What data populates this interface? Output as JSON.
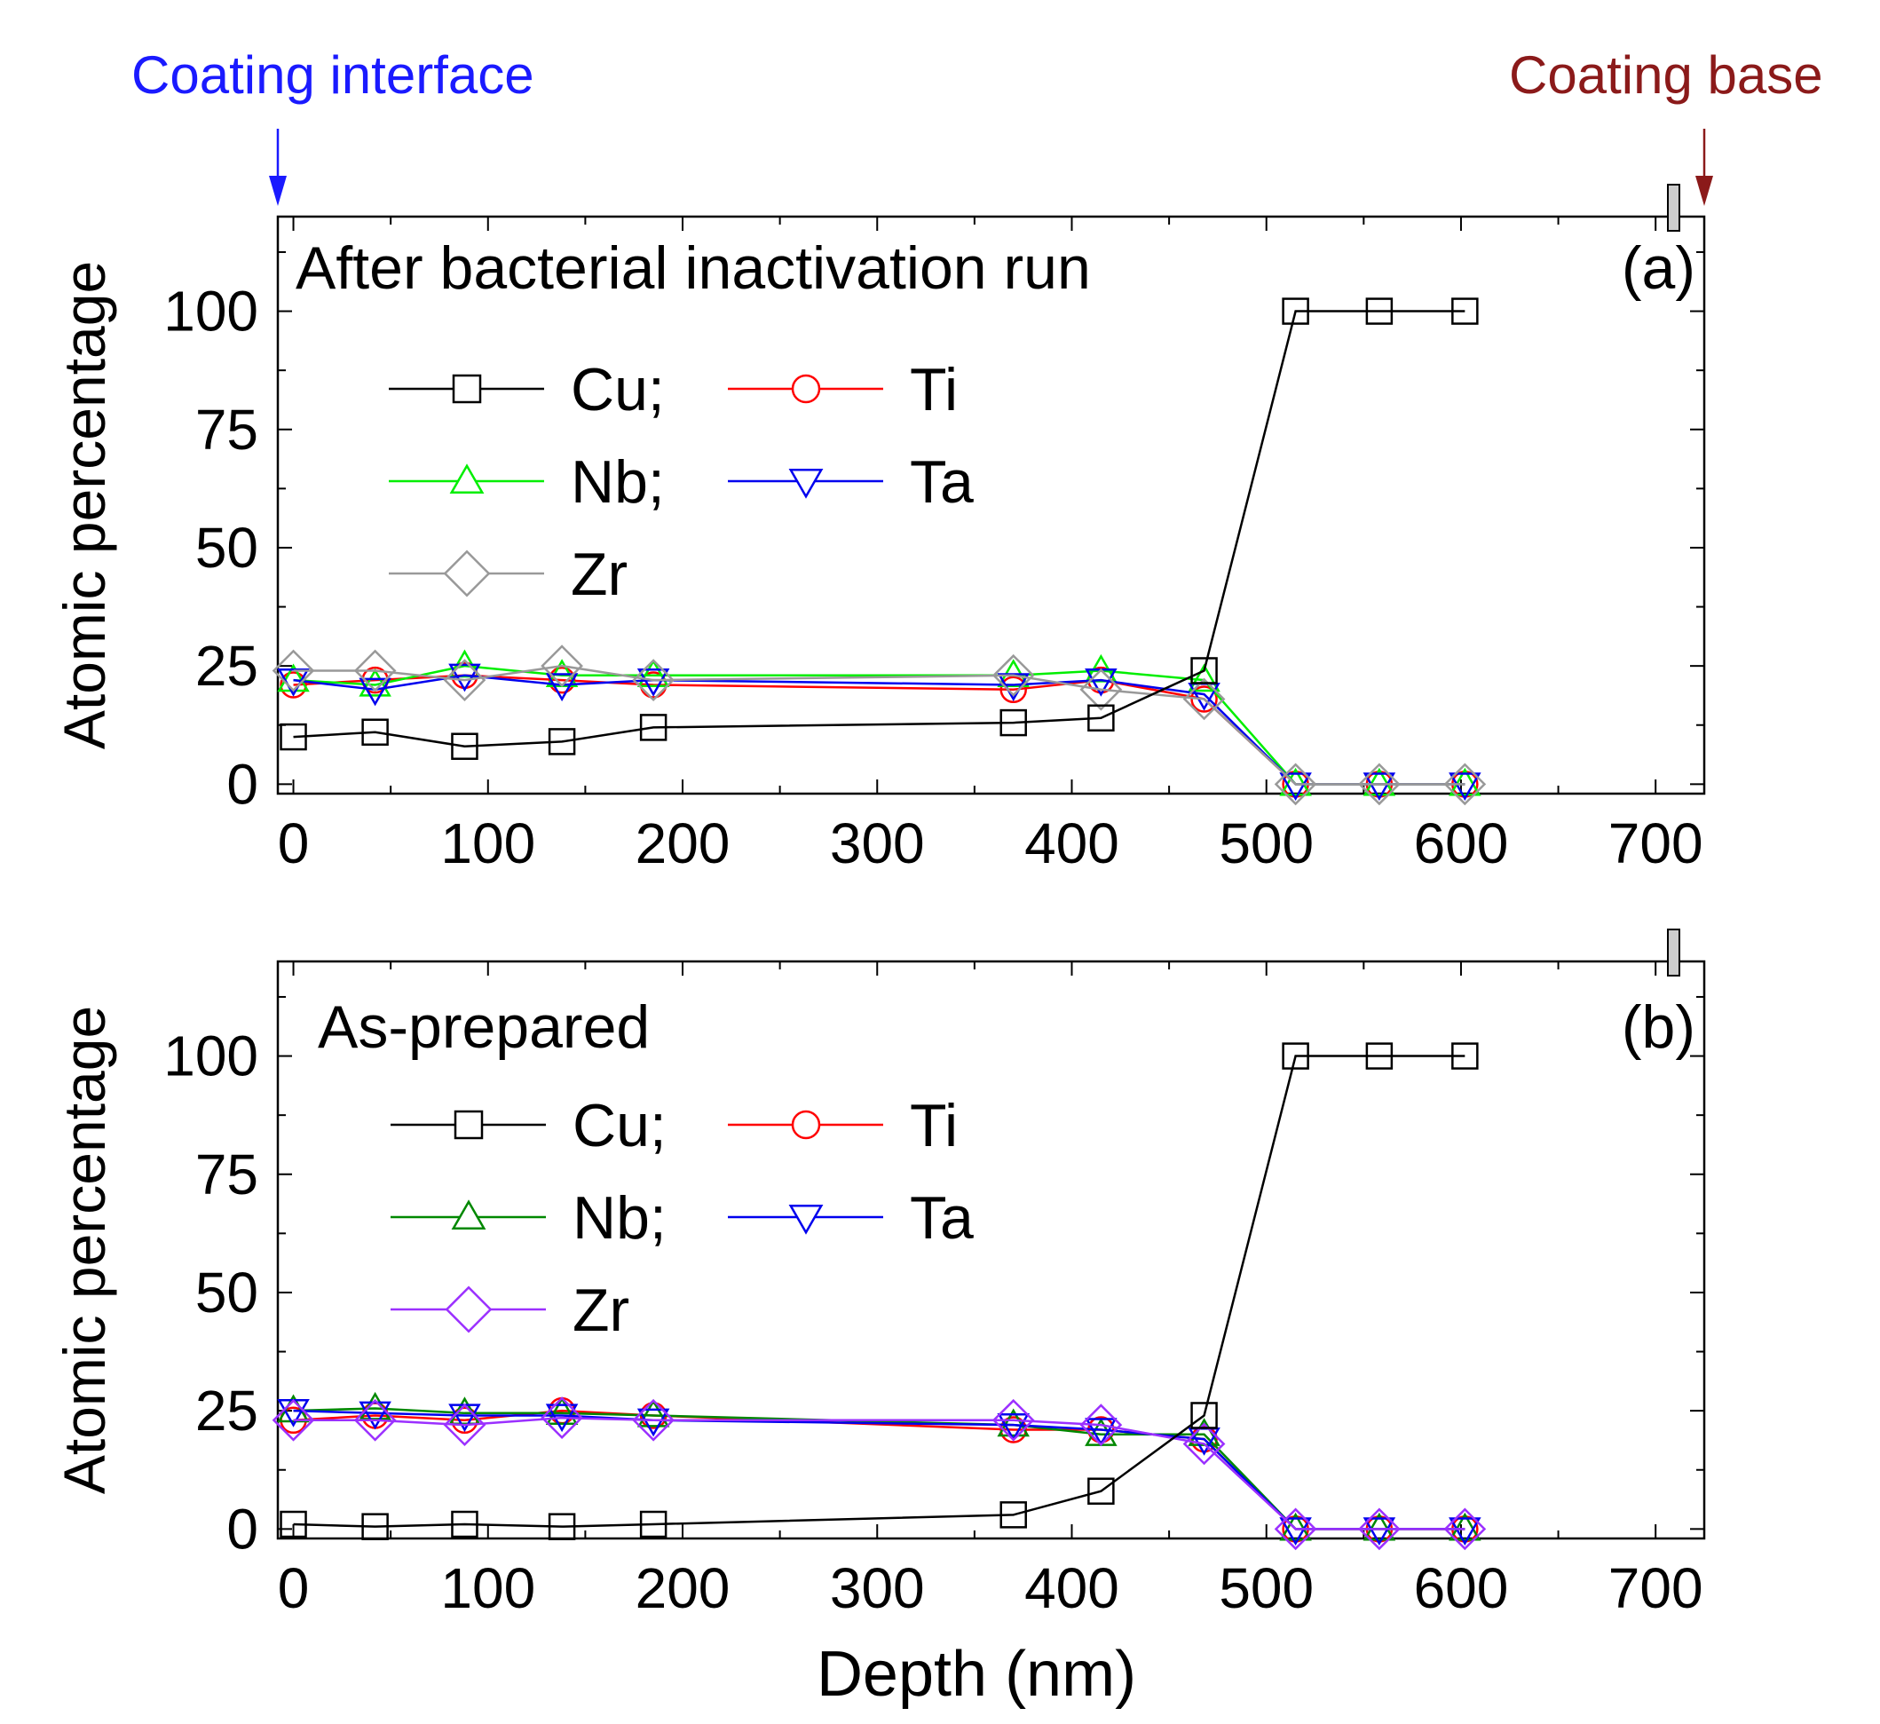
{
  "annotations": {
    "interface_label": "Coating interface",
    "interface_color": "#1a1aff",
    "base_label": "Coating base",
    "base_color": "#8b1a1a"
  },
  "chart_data": [
    {
      "type": "line",
      "title": "After bacterial inactivation run",
      "panel_label": "(a)",
      "xlabel": "",
      "ylabel": "Atomic percentage",
      "xlim": [
        -8,
        725
      ],
      "ylim": [
        -2,
        120
      ],
      "xticks": [
        0,
        100,
        200,
        300,
        400,
        500,
        600,
        700
      ],
      "yticks": [
        0,
        25,
        50,
        75,
        100
      ],
      "legend": "upper-left",
      "x": [
        0,
        42,
        88,
        138,
        185,
        370,
        415,
        468,
        515,
        558,
        602
      ],
      "series": [
        {
          "name": "Cu",
          "legend_label": "Cu;",
          "marker": "square",
          "color": "#000000",
          "values": [
            10,
            11,
            8,
            9,
            12,
            13,
            14,
            24,
            100,
            100,
            100
          ]
        },
        {
          "name": "Ti",
          "legend_label": "Ti",
          "marker": "circle",
          "color": "#ff0000",
          "values": [
            21,
            22,
            23,
            22,
            21,
            20,
            22,
            18,
            0,
            0,
            0
          ]
        },
        {
          "name": "Nb",
          "legend_label": "Nb;",
          "marker": "triangle-up",
          "color": "#00ee00",
          "values": [
            22,
            21,
            25,
            23,
            23,
            23,
            24,
            22,
            0,
            0,
            0
          ]
        },
        {
          "name": "Ta",
          "legend_label": "Ta",
          "marker": "triangle-down",
          "color": "#0000ee",
          "values": [
            22,
            20,
            23,
            21,
            22,
            21,
            22,
            19,
            0,
            0,
            0
          ]
        },
        {
          "name": "Zr",
          "legend_label": "Zr",
          "marker": "diamond",
          "color": "#999999",
          "values": [
            24,
            24,
            22,
            25,
            22,
            23,
            20,
            18,
            0,
            0,
            0
          ]
        }
      ]
    },
    {
      "type": "line",
      "title": "As-prepared",
      "panel_label": "(b)",
      "xlabel": "Depth (nm)",
      "ylabel": "Atomic percentage",
      "xlim": [
        -8,
        725
      ],
      "ylim": [
        -2,
        120
      ],
      "xticks": [
        0,
        100,
        200,
        300,
        400,
        500,
        600,
        700
      ],
      "yticks": [
        0,
        25,
        50,
        75,
        100
      ],
      "legend": "upper-left",
      "x": [
        0,
        42,
        88,
        138,
        185,
        370,
        415,
        468,
        515,
        558,
        602
      ],
      "series": [
        {
          "name": "Cu",
          "legend_label": "Cu;",
          "marker": "square",
          "color": "#000000",
          "values": [
            1,
            0.5,
            1,
            0.5,
            1,
            3,
            8,
            24,
            100,
            100,
            100
          ]
        },
        {
          "name": "Ti",
          "legend_label": "Ti",
          "marker": "circle",
          "color": "#ff0000",
          "values": [
            23,
            24,
            23,
            25,
            24,
            21,
            21,
            19,
            0,
            0,
            0
          ]
        },
        {
          "name": "Nb",
          "legend_label": "Nb;",
          "marker": "triangle-up",
          "color": "#008800",
          "values": [
            25,
            25.5,
            24.5,
            24.5,
            24,
            22,
            20,
            20,
            0,
            0,
            0
          ]
        },
        {
          "name": "Ta",
          "legend_label": "Ta",
          "marker": "triangle-down",
          "color": "#0000ee",
          "values": [
            25,
            24.5,
            24,
            24,
            23,
            22,
            21,
            19,
            0,
            0,
            0
          ]
        },
        {
          "name": "Zr",
          "legend_label": "Zr",
          "marker": "diamond",
          "color": "#9b30ff",
          "values": [
            23,
            23,
            22,
            23.5,
            23,
            23,
            22,
            18,
            0,
            0,
            0
          ]
        }
      ]
    }
  ]
}
